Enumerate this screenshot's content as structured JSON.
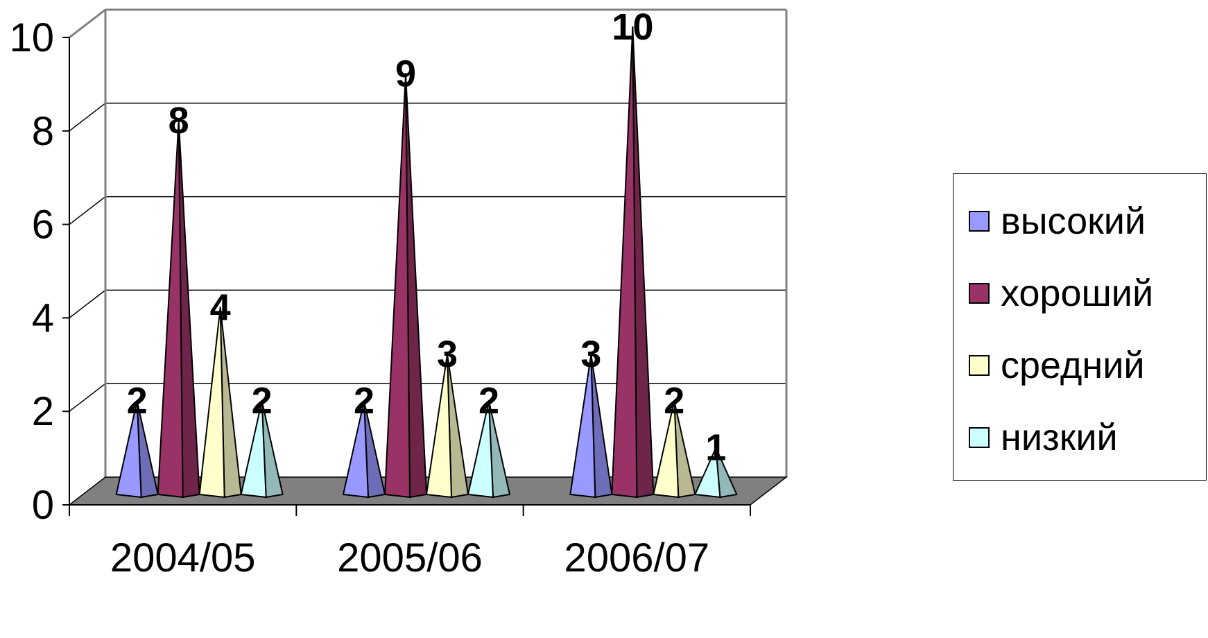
{
  "chart_data": {
    "type": "bar",
    "bar_shape": "cone",
    "categories": [
      "2004/05",
      "2005/06",
      "2006/07"
    ],
    "series": [
      {
        "name": "высокий",
        "color": "#9999FF",
        "values": [
          2,
          2,
          3
        ]
      },
      {
        "name": "хороший",
        "color": "#993366",
        "values": [
          8,
          9,
          10
        ]
      },
      {
        "name": "средний",
        "color": "#FFFFCC",
        "values": [
          4,
          3,
          2
        ]
      },
      {
        "name": "низкий",
        "color": "#CCFFFF",
        "values": [
          2,
          2,
          1
        ]
      }
    ],
    "ylim": [
      0,
      10
    ],
    "yticks": [
      "0",
      "2",
      "4",
      "6",
      "8",
      "10"
    ],
    "title": "",
    "xlabel": "",
    "ylabel": "",
    "grid": true,
    "legend_position": "right",
    "floor_color": "#808080",
    "data_labels": true
  }
}
